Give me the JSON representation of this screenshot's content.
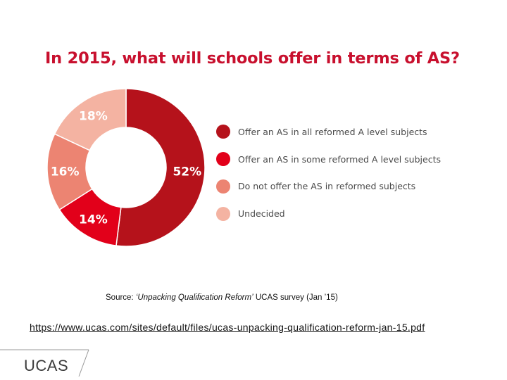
{
  "chart_data": {
    "type": "pie",
    "title": "In 2015, what will schools offer in terms of AS?",
    "categories": [
      "Offer an AS in all reformed A level subjects",
      "Offer an AS in some reformed A level subjects",
      "Do not offer the AS in reformed subjects",
      "Undecided"
    ],
    "values": [
      52,
      14,
      16,
      18
    ],
    "value_labels": [
      "52%",
      "14%",
      "16%",
      "18%"
    ],
    "colors": [
      "#b5121b",
      "#e2001a",
      "#ec8472",
      "#f4b3a2"
    ],
    "donut": true,
    "legend_placement": "right"
  },
  "source": {
    "prefix": "Source: ",
    "italic": "‘Unpacking Qualification Reform’",
    "suffix": " UCAS survey (Jan ’15)"
  },
  "url": "https://www.ucas.com/sites/default/files/ucas-unpacking-qualification-reform-jan-15.pdf",
  "logo": "UCAS"
}
